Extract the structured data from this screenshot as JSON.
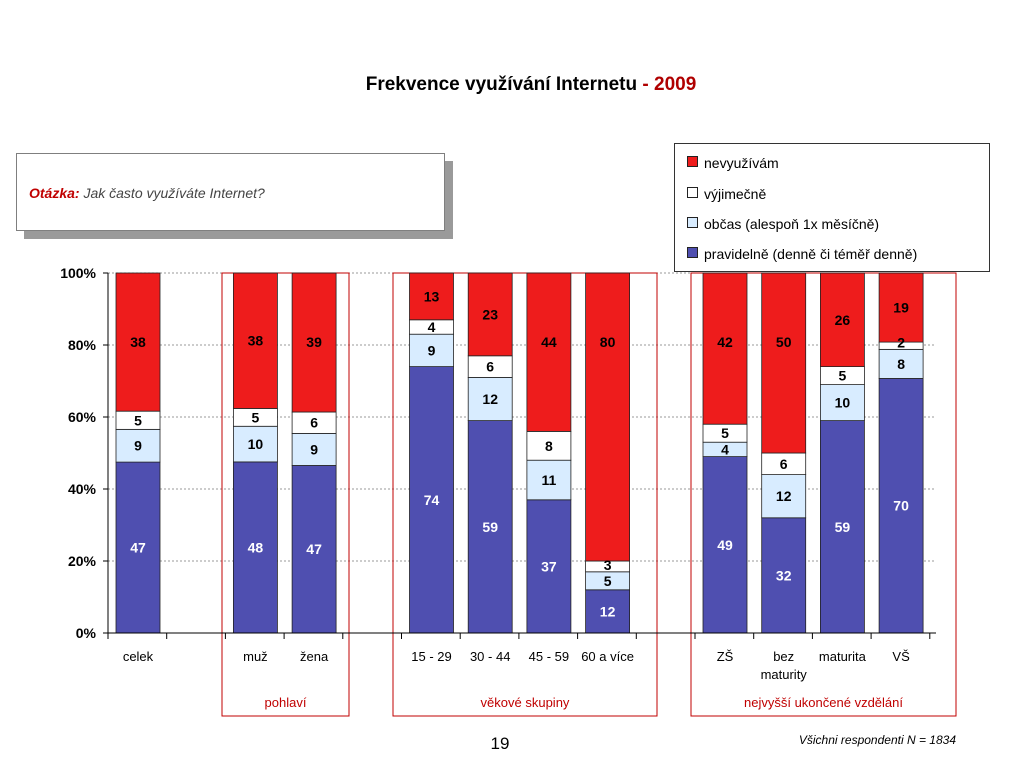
{
  "title": {
    "main": "Frekvence využívání Internetu",
    "dash": " - ",
    "year": "2009"
  },
  "question": {
    "label": "Otázka:",
    "text": "Jak často využíváte Internet?"
  },
  "colors": {
    "pravidelne": "#4f4fb0",
    "obcas": "#d8ecff",
    "vyjimecne": "#ffffff",
    "nevyuzivam": "#ee1c1c",
    "group_border": "#c00000",
    "group_label": "#c00000"
  },
  "chart_data": {
    "type": "bar",
    "stacked": true,
    "title": "Frekvence využívání Internetu - 2009",
    "ylim": [
      0,
      100
    ],
    "yticks": [
      "0%",
      "20%",
      "40%",
      "60%",
      "80%",
      "100%"
    ],
    "grid": true,
    "legend_position": "top-right",
    "categories": [
      "celek",
      "muž",
      "žena",
      "15 - 29",
      "30 - 44",
      "45 - 59",
      "60 a více",
      "ZŠ",
      "bez maturity",
      "maturita",
      "VŠ"
    ],
    "category_lines": [
      [
        "celek"
      ],
      [
        "muž"
      ],
      [
        "žena"
      ],
      [
        "15 - 29"
      ],
      [
        "30 - 44"
      ],
      [
        "45 - 59"
      ],
      [
        "60 a více"
      ],
      [
        "ZŠ"
      ],
      [
        "bez",
        "maturity"
      ],
      [
        "maturita"
      ],
      [
        "VŠ"
      ]
    ],
    "series": [
      {
        "name": "pravidelně (denně či téměř denně)",
        "values": [
          47,
          48,
          47,
          74,
          59,
          37,
          12,
          49,
          32,
          59,
          70
        ]
      },
      {
        "name": "občas (alespoň 1x měsíčně)",
        "values": [
          9,
          10,
          9,
          9,
          12,
          11,
          5,
          4,
          12,
          10,
          8
        ]
      },
      {
        "name": "výjimečně",
        "values": [
          5,
          5,
          6,
          4,
          6,
          8,
          3,
          5,
          6,
          5,
          2
        ]
      },
      {
        "name": "nevyužívám",
        "values": [
          38,
          38,
          39,
          13,
          23,
          44,
          80,
          42,
          50,
          26,
          19
        ]
      }
    ],
    "groups": [
      {
        "label": "pohlaví",
        "categories": [
          "muž",
          "žena"
        ]
      },
      {
        "label": "věkové skupiny",
        "categories": [
          "15 - 29",
          "30 - 44",
          "45 - 59",
          "60 a více"
        ]
      },
      {
        "label": "nejvyšší ukončené vzdělání",
        "categories": [
          "ZŠ",
          "bez maturity",
          "maturita",
          "VŠ"
        ]
      }
    ]
  },
  "legend": {
    "items": [
      {
        "label": "nevyužívám",
        "color": "#ee1c1c"
      },
      {
        "label": "výjimečně",
        "color": "#ffffff"
      },
      {
        "label": "občas (alespoň 1x měsíčně)",
        "color": "#d8ecff"
      },
      {
        "label": "pravidelně (denně či téměř denně)",
        "color": "#4f4fb0"
      }
    ]
  },
  "footer": {
    "page_number": "19",
    "note": "Všichni respondenti N = 1834"
  }
}
